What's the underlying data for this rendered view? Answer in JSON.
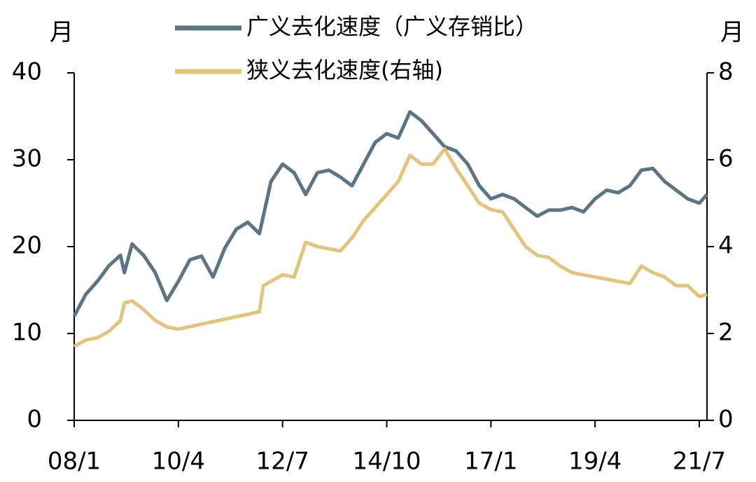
{
  "chart_data": {
    "type": "line",
    "y_unit": "月",
    "y2_unit": "月",
    "xlim": [
      "08/1",
      "21/9"
    ],
    "xticks": [
      "08/1",
      "10/4",
      "12/7",
      "14/10",
      "17/1",
      "19/4",
      "21/7"
    ],
    "ylim": [
      0,
      40
    ],
    "yticks": [
      0,
      10,
      20,
      30,
      40
    ],
    "y2lim": [
      0,
      8
    ],
    "y2ticks": [
      0,
      2,
      4,
      6,
      8
    ],
    "legend": "top",
    "series": [
      {
        "name": "广义去化速度（广义存销比）",
        "color": "#5b7584",
        "x": [
          "08/1",
          "08/4",
          "08/7",
          "08/10",
          "09/1",
          "09/2",
          "09/4",
          "09/7",
          "09/10",
          "10/1",
          "10/4",
          "10/7",
          "10/10",
          "11/1",
          "11/4",
          "11/7",
          "11/10",
          "12/1",
          "12/4",
          "12/7",
          "12/10",
          "13/1",
          "13/4",
          "13/7",
          "13/10",
          "14/1",
          "14/4",
          "14/7",
          "14/10",
          "15/1",
          "15/4",
          "15/7",
          "15/10",
          "16/1",
          "16/4",
          "16/7",
          "16/10",
          "17/1",
          "17/4",
          "17/7",
          "17/10",
          "18/1",
          "18/4",
          "18/7",
          "18/10",
          "19/1",
          "19/4",
          "19/7",
          "19/10",
          "20/1",
          "20/4",
          "20/7",
          "20/10",
          "21/1",
          "21/4",
          "21/7",
          "21/9"
        ],
        "values": [
          12,
          14.5,
          16,
          17.8,
          19,
          17,
          20.3,
          19,
          17,
          13.8,
          16,
          18.5,
          18.9,
          16.5,
          19.8,
          22,
          22.8,
          21.5,
          27.5,
          29.5,
          28.5,
          26,
          28.5,
          28.8,
          28,
          27,
          29.5,
          32,
          33,
          32.5,
          35.5,
          34.5,
          33,
          31.5,
          31,
          29.5,
          27,
          25.5,
          26,
          25.5,
          24.5,
          23.5,
          24.2,
          24.2,
          24.5,
          24,
          25.5,
          26.5,
          26.2,
          27,
          28.8,
          29,
          27.5,
          26.5,
          25.5,
          25,
          26
        ]
      },
      {
        "name": "狭义去化速度(右轴)",
        "color": "#e3c47d",
        "axis": "y2",
        "x": [
          "08/1",
          "08/4",
          "08/7",
          "08/10",
          "09/1",
          "09/2",
          "09/4",
          "09/7",
          "09/10",
          "10/1",
          "10/4",
          "12/1",
          "12/2",
          "12/4",
          "12/7",
          "12/10",
          "13/1",
          "13/4",
          "13/7",
          "13/10",
          "14/1",
          "14/4",
          "14/7",
          "14/10",
          "15/1",
          "15/4",
          "15/7",
          "15/10",
          "16/1",
          "16/4",
          "16/7",
          "16/10",
          "17/1",
          "17/4",
          "17/7",
          "17/10",
          "18/1",
          "18/4",
          "18/7",
          "18/10",
          "19/1",
          "19/4",
          "19/7",
          "19/10",
          "20/1",
          "20/4",
          "20/7",
          "20/10",
          "21/1",
          "21/4",
          "21/7",
          "21/9"
        ],
        "values": [
          1.7,
          1.85,
          1.9,
          2.05,
          2.3,
          2.7,
          2.75,
          2.55,
          2.3,
          2.15,
          2.1,
          2.5,
          3.1,
          3.2,
          3.35,
          3.3,
          4.1,
          4.0,
          3.95,
          3.9,
          4.2,
          4.6,
          4.9,
          5.2,
          5.5,
          6.1,
          5.9,
          5.9,
          6.25,
          5.8,
          5.4,
          5.0,
          4.85,
          4.8,
          4.4,
          4.0,
          3.8,
          3.75,
          3.55,
          3.4,
          3.35,
          3.3,
          3.25,
          3.2,
          3.15,
          3.55,
          3.4,
          3.3,
          3.1,
          3.1,
          2.85,
          2.9
        ]
      }
    ]
  }
}
